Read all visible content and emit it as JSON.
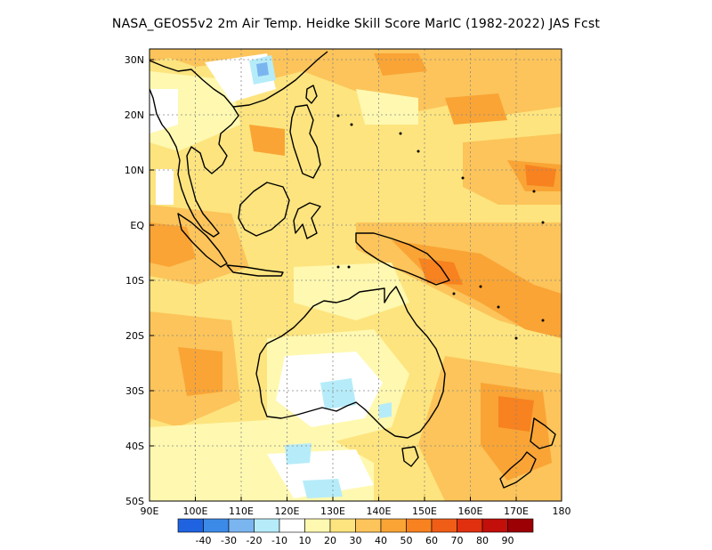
{
  "title": "NASA_GEOS5v2  2m Air Temp. Heidke Skill Score MarIC (1982-2022) JAS Fcst",
  "map": {
    "lon_range": [
      90,
      180
    ],
    "lat_range": [
      -50,
      32
    ],
    "lon_ticks": [
      "90E",
      "100E",
      "110E",
      "120E",
      "130E",
      "140E",
      "150E",
      "160E",
      "170E",
      "180"
    ],
    "lat_ticks": [
      "30N",
      "20N",
      "10N",
      "EQ",
      "10S",
      "20S",
      "30S",
      "40S",
      "50S"
    ]
  },
  "colorbar": {
    "colors": [
      "#1f63e0",
      "#3c8ae8",
      "#7ab5ef",
      "#b6ecf9",
      "#ffffff",
      "#fff8b0",
      "#fde47e",
      "#fcc45a",
      "#f9a435",
      "#f7821f",
      "#ef5d17",
      "#e0300f",
      "#c20f0a",
      "#9c0005"
    ],
    "labels": [
      "-40",
      "-30",
      "-20",
      "-10",
      "10",
      "20",
      "30",
      "40",
      "50",
      "60",
      "70",
      "80",
      "90"
    ]
  }
}
